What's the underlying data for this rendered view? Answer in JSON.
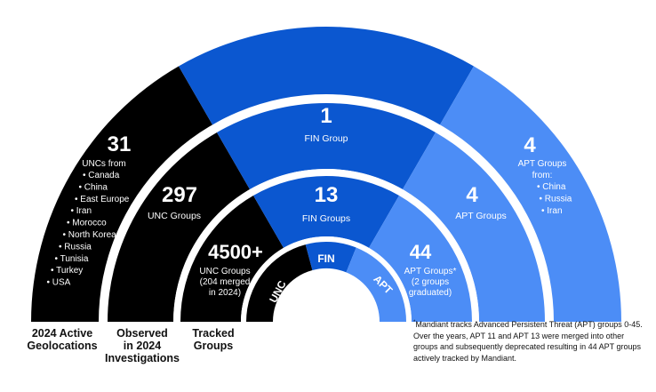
{
  "colors": {
    "black": "#000000",
    "dark_blue": "#0b57d0",
    "light_blue": "#4c8df6",
    "white": "#ffffff"
  },
  "rings": {
    "geolocations": {
      "unc_count": "31",
      "unc_heading": "UNCs from",
      "unc_countries": [
        "Canada",
        "China",
        "East Europe",
        "Iran",
        "Morocco",
        "North Korea",
        "Russia",
        "Tunisia",
        "Turkey",
        "USA"
      ],
      "fin_count": "1",
      "fin_text": "FIN Group",
      "apt_count": "4",
      "apt_heading": "APT Groups",
      "apt_heading2": "from:",
      "apt_countries": [
        "China",
        "Russia",
        "Iran"
      ]
    },
    "investigations": {
      "unc_count": "297",
      "unc_text": "UNC Groups",
      "fin_count": "13",
      "fin_text": "FIN Groups",
      "apt_count": "4",
      "apt_text": "APT Groups"
    },
    "tracked": {
      "unc_count": "4500+",
      "unc_line1": "UNC Groups",
      "unc_line2": "(204 merged",
      "unc_line3": "in 2024)",
      "apt_count": "44",
      "apt_line1": "APT Groups*",
      "apt_line2": "(2 groups",
      "apt_line3": "graduated)"
    },
    "center": {
      "unc": "UNC",
      "fin": "FIN",
      "apt": "APT"
    }
  },
  "bottom_labels": {
    "geolocations": [
      "2024 Active",
      "Geolocations"
    ],
    "investigations": [
      "Observed",
      "in 2024",
      "Investigations"
    ],
    "tracked": [
      "Tracked",
      "Groups"
    ]
  },
  "footnote": {
    "marker": "*",
    "text": "Mandiant tracks Advanced Persistent Threat (APT) groups 0-45. Over the years, APT 11 and APT 13 were merged into other groups and subsequently deprecated resulting in 44 APT groups actively tracked by Mandiant."
  }
}
